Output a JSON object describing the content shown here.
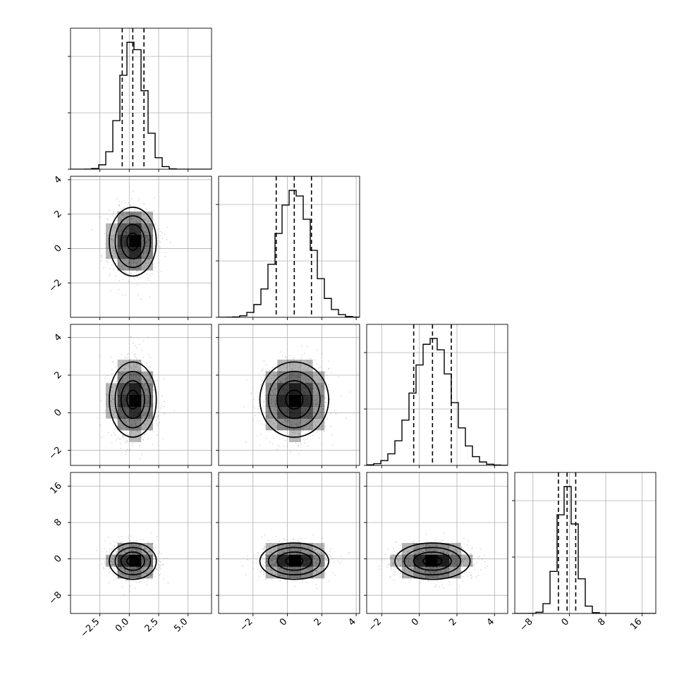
{
  "chart_data": {
    "type": "corner",
    "parameters": 4,
    "title": "",
    "grid": true,
    "axes": [
      {
        "range": [
          -5.0,
          7.0
        ],
        "ticks": [
          -2.5,
          0.0,
          2.5,
          5.0
        ],
        "tick_labels": [
          "−2.5",
          "0.0",
          "2.5",
          "5.0"
        ],
        "mean": 0.3,
        "sd": 1.0
      },
      {
        "range": [
          -4.0,
          4.2
        ],
        "ticks": [
          -2,
          0,
          2,
          4
        ],
        "tick_labels": [
          "−2",
          "0",
          "2",
          "4"
        ],
        "mean": 0.4,
        "sd": 1.0
      },
      {
        "range": [
          -2.8,
          4.7
        ],
        "ticks": [
          -2,
          0,
          2,
          4
        ],
        "tick_labels": [
          "−2",
          "0",
          "2",
          "4"
        ],
        "mean": 0.7,
        "sd": 1.0
      },
      {
        "range": [
          -12.0,
          19.0
        ],
        "ticks": [
          -8,
          0,
          8,
          16
        ],
        "tick_labels": [
          "−8",
          "0",
          "8",
          "16"
        ],
        "mean": -0.5,
        "sd": 2.0
      }
    ],
    "quantiles": [
      [
        -0.6,
        0.3,
        1.25
      ],
      [
        -0.65,
        0.4,
        1.4
      ],
      [
        -0.3,
        0.7,
        1.7
      ],
      [
        -2.4,
        -0.5,
        1.4
      ]
    ],
    "histogram_bins": 20,
    "contour_levels": [
      0.5,
      1.0,
      1.5,
      2.0
    ],
    "correlations": {
      "1-0": 0.0,
      "2-0": 0.0,
      "2-1": 0.1,
      "3-0": 0.0,
      "3-1": 0.0,
      "3-2": 0.0
    }
  }
}
